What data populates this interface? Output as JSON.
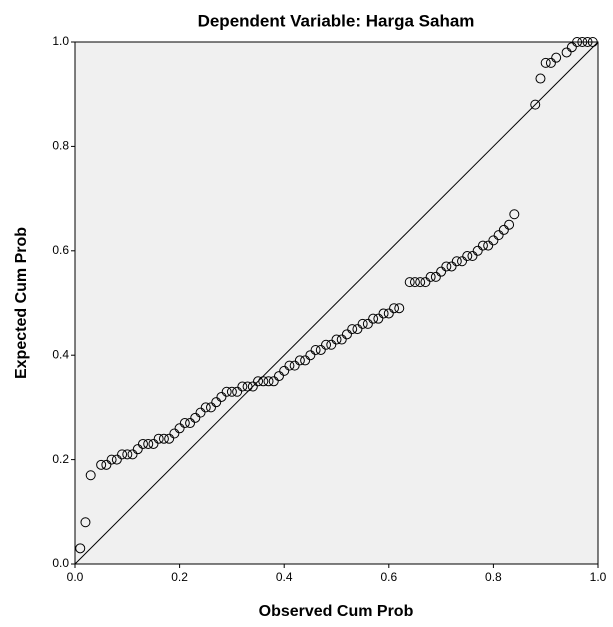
{
  "chart_data": {
    "type": "scatter",
    "title": "Dependent Variable: Harga Saham",
    "x_label": "Observed Cum Prob",
    "y_label": "Expected Cum Prob",
    "xlim": [
      0,
      1
    ],
    "ylim": [
      0,
      1
    ],
    "xticks": [
      {
        "value": 0,
        "label": "0.0"
      },
      {
        "value": 0.2,
        "label": "0.2"
      },
      {
        "value": 0.4,
        "label": "0.4"
      },
      {
        "value": 0.6,
        "label": "0.6"
      },
      {
        "value": 0.8,
        "label": "0.8"
      },
      {
        "value": 1,
        "label": "1.0"
      }
    ],
    "yticks": [
      {
        "value": 0,
        "label": "0.0"
      },
      {
        "value": 0.2,
        "label": "0.2"
      },
      {
        "value": 0.4,
        "label": "0.4"
      },
      {
        "value": 0.6,
        "label": "0.6"
      },
      {
        "value": 0.8,
        "label": "0.8"
      },
      {
        "value": 1,
        "label": "1.0"
      }
    ],
    "grid": false,
    "reference_line": true,
    "color": "#000000",
    "x": [
      0.01,
      0.02,
      0.03,
      0.05,
      0.06,
      0.07,
      0.08,
      0.09,
      0.1,
      0.11,
      0.12,
      0.13,
      0.14,
      0.15,
      0.16,
      0.17,
      0.18,
      0.19,
      0.2,
      0.21,
      0.22,
      0.23,
      0.24,
      0.25,
      0.26,
      0.27,
      0.28,
      0.29,
      0.3,
      0.31,
      0.32,
      0.33,
      0.34,
      0.35,
      0.36,
      0.37,
      0.38,
      0.39,
      0.4,
      0.41,
      0.42,
      0.43,
      0.44,
      0.45,
      0.46,
      0.47,
      0.48,
      0.49,
      0.5,
      0.51,
      0.52,
      0.53,
      0.54,
      0.55,
      0.56,
      0.57,
      0.58,
      0.59,
      0.6,
      0.61,
      0.62,
      0.64,
      0.65,
      0.66,
      0.67,
      0.68,
      0.69,
      0.7,
      0.71,
      0.72,
      0.73,
      0.74,
      0.75,
      0.76,
      0.77,
      0.78,
      0.79,
      0.8,
      0.81,
      0.82,
      0.83,
      0.84,
      0.88,
      0.89,
      0.9,
      0.91,
      0.92,
      0.94,
      0.95,
      0.96,
      0.97,
      0.98,
      0.99
    ],
    "values": [
      0.03,
      0.08,
      0.17,
      0.19,
      0.19,
      0.2,
      0.2,
      0.21,
      0.21,
      0.21,
      0.22,
      0.23,
      0.23,
      0.23,
      0.24,
      0.24,
      0.24,
      0.25,
      0.26,
      0.27,
      0.27,
      0.28,
      0.29,
      0.3,
      0.3,
      0.31,
      0.32,
      0.33,
      0.33,
      0.33,
      0.34,
      0.34,
      0.34,
      0.35,
      0.35,
      0.35,
      0.35,
      0.36,
      0.37,
      0.38,
      0.38,
      0.39,
      0.39,
      0.4,
      0.41,
      0.41,
      0.42,
      0.42,
      0.43,
      0.43,
      0.44,
      0.45,
      0.45,
      0.46,
      0.46,
      0.47,
      0.47,
      0.48,
      0.48,
      0.49,
      0.49,
      0.54,
      0.54,
      0.54,
      0.54,
      0.55,
      0.55,
      0.56,
      0.57,
      0.57,
      0.58,
      0.58,
      0.59,
      0.59,
      0.6,
      0.61,
      0.61,
      0.62,
      0.63,
      0.64,
      0.65,
      0.67,
      0.88,
      0.93,
      0.96,
      0.96,
      0.97,
      0.98,
      0.99,
      1.0,
      1.0,
      1.0,
      1.0
    ]
  }
}
